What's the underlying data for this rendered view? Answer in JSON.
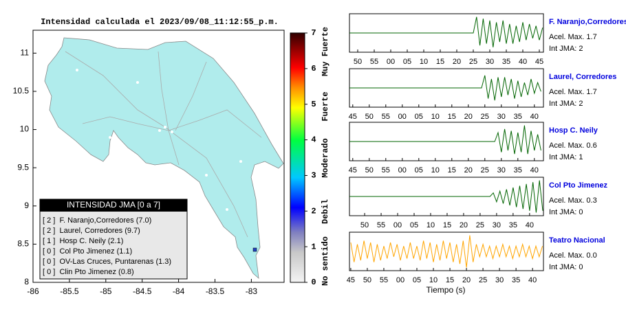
{
  "title": "Intensidad calculada el 2023/09/08_11:12:55_p.m.",
  "map": {
    "type": "map",
    "xlim": [
      -86,
      -82.55
    ],
    "ylim": [
      8,
      11.3
    ],
    "xticks": [
      -86,
      -85.5,
      -85,
      -84.5,
      -84,
      -83.5,
      -83
    ],
    "yticks": [
      8,
      8.5,
      9,
      9.5,
      10,
      10.5,
      11
    ],
    "legend_title": "INTENSIDAD JMA [0 a 7]",
    "legend_entries": [
      "[ 2 ]  F. Naranjo,Corredores (7.0)",
      "[ 2 ]  Laurel, Corredores (9.7)",
      "[ 1 ]  Hosp C. Neily (2.1)",
      "[ 0 ]  Col Pto Jimenez (1.1)",
      "[ 0 ]  OV-Las Cruces, Puntarenas (1.3)",
      "[ 0 ]  Clin Pto Jimenez (0.8)"
    ]
  },
  "colorbar": {
    "ylim": [
      0,
      7
    ],
    "yticks": [
      0,
      1,
      2,
      3,
      4,
      5,
      6,
      7
    ],
    "labels": [
      "No sentido",
      "Debil",
      "Moderado",
      "Fuerte",
      "Muy Fuerte"
    ]
  },
  "traces": [
    {
      "name": "F. Naranjo,Corredores",
      "acel": "Acel. Max. 1.7",
      "int": "Int JMA: 2",
      "color": "#006400",
      "xlim": [
        47.5,
        106.25
      ],
      "ylim": [
        -1,
        1
      ],
      "xticks": [
        50,
        55,
        {
          "value": 60,
          "label": "00"
        },
        {
          "value": 65,
          "label": "05"
        },
        {
          "value": 70,
          "label": "10"
        },
        {
          "value": 75,
          "label": "15"
        },
        {
          "value": 80,
          "label": "20"
        },
        {
          "value": 85,
          "label": "25"
        },
        {
          "value": 90,
          "label": "30"
        },
        {
          "value": 95,
          "label": "35"
        },
        {
          "value": 100,
          "label": "40"
        },
        {
          "value": 105,
          "label": "45"
        }
      ],
      "x": [
        47.5,
        85,
        86,
        87,
        88,
        89,
        90,
        91,
        92,
        93,
        94,
        95,
        96,
        97,
        98,
        99,
        100,
        101,
        102,
        103,
        104,
        105,
        106
      ],
      "values": [
        0,
        0,
        0.9,
        -0.7,
        0.8,
        -0.6,
        0.7,
        -0.8,
        0.6,
        -0.5,
        0.7,
        -0.6,
        0.5,
        -0.6,
        0.4,
        -0.5,
        0.6,
        -0.4,
        0.5,
        -0.3,
        0.4,
        -0.4,
        0.3
      ]
    },
    {
      "name": "Laurel, Corredores",
      "acel": "Acel. Max. 1.7",
      "int": "Int JMA: 2",
      "color": "#006400",
      "xlim": [
        44,
        102.75
      ],
      "ylim": [
        -1,
        1
      ],
      "xticks": [
        45,
        50,
        55,
        {
          "value": 60,
          "label": "00"
        },
        {
          "value": 65,
          "label": "05"
        },
        {
          "value": 70,
          "label": "10"
        },
        {
          "value": 75,
          "label": "15"
        },
        {
          "value": 80,
          "label": "20"
        },
        {
          "value": 85,
          "label": "25"
        },
        {
          "value": 90,
          "label": "30"
        },
        {
          "value": 95,
          "label": "35"
        },
        {
          "value": 100,
          "label": "40"
        }
      ],
      "x": [
        44,
        84,
        85,
        86,
        87,
        88,
        89,
        90,
        91,
        92,
        93,
        94,
        95,
        96,
        97,
        98,
        99,
        100,
        101,
        102
      ],
      "values": [
        0,
        0,
        0.7,
        -0.6,
        0.5,
        -0.7,
        0.6,
        -0.5,
        0.6,
        -0.4,
        0.5,
        -0.6,
        0.4,
        -0.5,
        0.3,
        -0.4,
        0.5,
        -0.3,
        0.3,
        -0.2
      ]
    },
    {
      "name": "Hosp C. Neily",
      "acel": "Acel. Max. 0.6",
      "int": "Int JMA: 1",
      "color": "#006400",
      "xlim": [
        44,
        102.75
      ],
      "ylim": [
        -1,
        1
      ],
      "xticks": [
        45,
        50,
        55,
        {
          "value": 60,
          "label": "00"
        },
        {
          "value": 65,
          "label": "05"
        },
        {
          "value": 70,
          "label": "10"
        },
        {
          "value": 75,
          "label": "15"
        },
        {
          "value": 80,
          "label": "20"
        },
        {
          "value": 85,
          "label": "25"
        },
        {
          "value": 90,
          "label": "30"
        },
        {
          "value": 95,
          "label": "35"
        },
        {
          "value": 100,
          "label": "40"
        }
      ],
      "x": [
        44,
        88,
        89,
        90,
        91,
        92,
        93,
        94,
        95,
        96,
        97,
        98,
        99,
        100,
        101,
        102
      ],
      "values": [
        0,
        0,
        0.5,
        -0.6,
        0.7,
        -0.5,
        0.6,
        -0.7,
        0.5,
        -0.6,
        0.9,
        -0.7,
        0.6,
        -0.5,
        0.4,
        -0.5
      ]
    },
    {
      "name": "Col Pto Jimenez",
      "acel": "Acel. Max. 0.3",
      "int": "Int JMA: 0",
      "color": "#006400",
      "xlim": [
        45.4,
        104.2
      ],
      "ylim": [
        -1,
        1
      ],
      "xticks": [
        50,
        55,
        {
          "value": 60,
          "label": "00"
        },
        {
          "value": 65,
          "label": "05"
        },
        {
          "value": 70,
          "label": "10"
        },
        {
          "value": 75,
          "label": "15"
        },
        {
          "value": 80,
          "label": "20"
        },
        {
          "value": 85,
          "label": "25"
        },
        {
          "value": 90,
          "label": "30"
        },
        {
          "value": 95,
          "label": "35"
        },
        {
          "value": 100,
          "label": "40"
        }
      ],
      "x": [
        45.4,
        88,
        89,
        90,
        91,
        92,
        93,
        94,
        95,
        96,
        97,
        98,
        99,
        100,
        101,
        102,
        103,
        104
      ],
      "values": [
        0,
        0,
        0.2,
        -0.3,
        0.3,
        -0.4,
        0.4,
        -0.5,
        0.5,
        -0.6,
        0.6,
        -0.7,
        0.7,
        -0.8,
        0.8,
        -0.9,
        0.9,
        -0.8
      ]
    },
    {
      "name": "Teatro Nacional",
      "acel": "Acel. Max. 0.0",
      "int": "Int JMA: 0",
      "color": "#ffa500",
      "xlim": [
        44.6,
        103.3
      ],
      "ylim": [
        -1,
        1
      ],
      "xticks": [
        45,
        50,
        55,
        {
          "value": 60,
          "label": "00"
        },
        {
          "value": 65,
          "label": "05"
        },
        {
          "value": 70,
          "label": "10"
        },
        {
          "value": 75,
          "label": "15"
        },
        {
          "value": 80,
          "label": "20"
        },
        {
          "value": 85,
          "label": "25"
        },
        {
          "value": 90,
          "label": "30"
        },
        {
          "value": 95,
          "label": "35"
        },
        {
          "value": 100,
          "label": "40"
        }
      ],
      "x": [
        45,
        46,
        47,
        48,
        49,
        50,
        51,
        52,
        53,
        54,
        55,
        56,
        57,
        58,
        59,
        60,
        61,
        62,
        63,
        64,
        65,
        66,
        67,
        68,
        69,
        70,
        71,
        72,
        73,
        74,
        75,
        76,
        77,
        78,
        79,
        80,
        81,
        82,
        83,
        84,
        85,
        86,
        87,
        88,
        89,
        90,
        91,
        92,
        93,
        94,
        95,
        96,
        97,
        98,
        99,
        100,
        101,
        102,
        103
      ],
      "values": [
        0.5,
        -0.6,
        0.4,
        -0.5,
        0.6,
        -0.4,
        0.5,
        -0.6,
        0.4,
        -0.5,
        0.3,
        -0.4,
        0.5,
        -0.3,
        0.4,
        -0.5,
        0.3,
        -0.4,
        0.5,
        -0.4,
        0.3,
        -0.5,
        0.6,
        -0.4,
        0.5,
        -0.6,
        0.4,
        -0.5,
        0.6,
        -0.4,
        0.5,
        -0.6,
        0.4,
        -0.7,
        0.6,
        -0.9,
        0.9,
        -0.6,
        0.4,
        -0.3,
        0.4,
        -0.3,
        0.3,
        -0.4,
        0.3,
        -0.3,
        0.4,
        -0.3,
        0.3,
        -0.4,
        0.3,
        -0.3,
        0.4,
        -0.3,
        0.3,
        -0.4,
        0.3,
        -0.3,
        0.3
      ]
    }
  ],
  "xlabel": "Tiempo (s)"
}
